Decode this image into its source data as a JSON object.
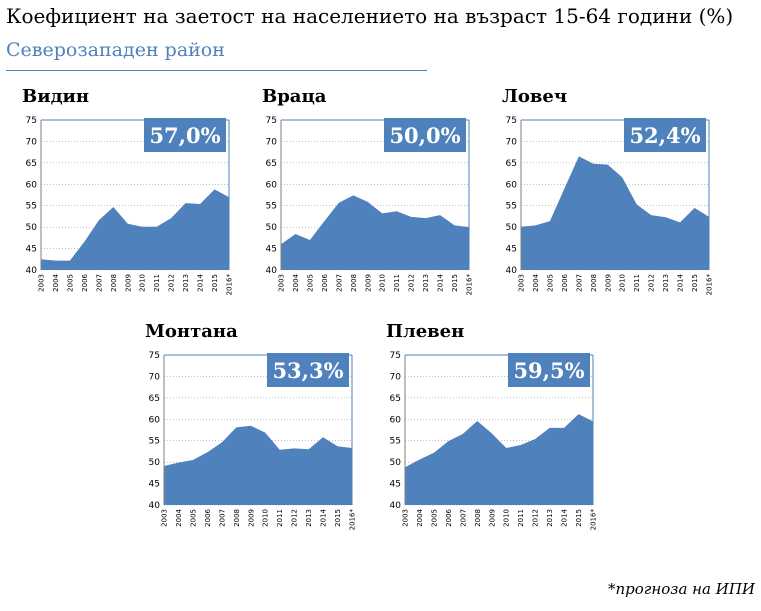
{
  "header": {
    "title": "Коефициент на заетост на населението на възраст 15-64 години (%)",
    "subtitle": "Северозападен район"
  },
  "footnote": "*прогноза на ИПИ",
  "colors": {
    "area": "#4f81bd",
    "callout": "#4f81bd",
    "accent_text": "#4f81bd"
  },
  "chart_data": [
    {
      "type": "area",
      "title": "Видин",
      "callout": "57,0%",
      "categories": [
        "2003",
        "2004",
        "2005",
        "2006",
        "2007",
        "2008",
        "2009",
        "2010",
        "2011",
        "2012",
        "2013",
        "2014",
        "2015",
        "2016*"
      ],
      "values": [
        42.5,
        42.2,
        42.2,
        46.6,
        51.6,
        54.7,
        50.8,
        50.1,
        50.1,
        52.1,
        55.6,
        55.4,
        58.8,
        57.0
      ],
      "ylim": [
        40,
        75
      ],
      "yticks": [
        "40",
        "45",
        "50",
        "55",
        "60",
        "65",
        "70",
        "75"
      ],
      "grid": true
    },
    {
      "type": "area",
      "title": "Враца",
      "callout": "50,0%",
      "categories": [
        "2003",
        "2004",
        "2005",
        "2006",
        "2007",
        "2008",
        "2009",
        "2010",
        "2011",
        "2012",
        "2013",
        "2014",
        "2015",
        "2016*"
      ],
      "values": [
        46.0,
        48.4,
        47.0,
        51.4,
        55.7,
        57.4,
        55.9,
        53.2,
        53.7,
        52.4,
        52.1,
        52.8,
        50.4,
        50.0
      ],
      "ylim": [
        40,
        75
      ],
      "yticks": [
        "40",
        "45",
        "50",
        "55",
        "60",
        "65",
        "70",
        "75"
      ],
      "grid": true
    },
    {
      "type": "area",
      "title": "Ловеч",
      "callout": "52,4%",
      "categories": [
        "2003",
        "2004",
        "2005",
        "2006",
        "2007",
        "2008",
        "2009",
        "2010",
        "2011",
        "2012",
        "2013",
        "2014",
        "2015",
        "2016*"
      ],
      "values": [
        50.1,
        50.4,
        51.4,
        59.0,
        66.5,
        64.8,
        64.6,
        61.6,
        55.3,
        52.8,
        52.3,
        51.1,
        54.5,
        52.4
      ],
      "ylim": [
        40,
        75
      ],
      "yticks": [
        "40",
        "45",
        "50",
        "55",
        "60",
        "65",
        "70",
        "75"
      ],
      "grid": true
    },
    {
      "type": "area",
      "title": "Монтана",
      "callout": "53,3%",
      "categories": [
        "2003",
        "2004",
        "2005",
        "2006",
        "2007",
        "2008",
        "2009",
        "2010",
        "2011",
        "2012",
        "2013",
        "2014",
        "2015",
        "2016*"
      ],
      "values": [
        49.1,
        49.9,
        50.5,
        52.3,
        54.6,
        58.1,
        58.5,
        56.9,
        52.9,
        53.2,
        53.0,
        55.8,
        53.7,
        53.3
      ],
      "ylim": [
        40,
        75
      ],
      "yticks": [
        "40",
        "45",
        "50",
        "55",
        "60",
        "65",
        "70",
        "75"
      ],
      "grid": true
    },
    {
      "type": "area",
      "title": "Плевен",
      "callout": "59,5%",
      "categories": [
        "2003",
        "2004",
        "2005",
        "2006",
        "2007",
        "2008",
        "2009",
        "2010",
        "2011",
        "2012",
        "2013",
        "2014",
        "2015",
        "2016*"
      ],
      "values": [
        48.8,
        50.6,
        52.2,
        54.9,
        56.6,
        59.6,
        56.7,
        53.3,
        54.0,
        55.4,
        58.0,
        58.0,
        61.2,
        59.5
      ],
      "ylim": [
        40,
        75
      ],
      "yticks": [
        "40",
        "45",
        "50",
        "55",
        "60",
        "65",
        "70",
        "75"
      ],
      "grid": true
    }
  ]
}
